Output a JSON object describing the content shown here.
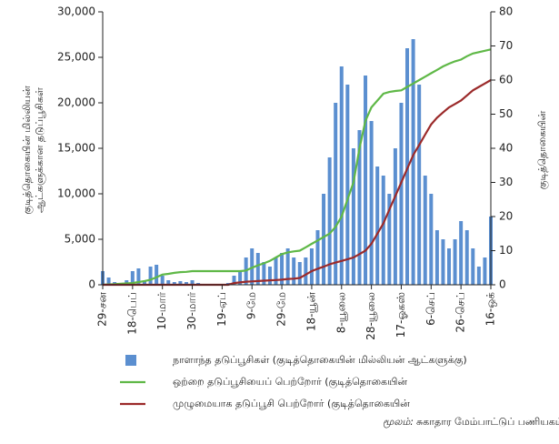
{
  "chart_data": {
    "type": "bar-line",
    "ylabel": [
      "குடித்தொகையின் மில்லியன்",
      "ஆட்களுக்கான தடுப்பூசிகள்"
    ],
    "y2label": "குடித்தொகையின்",
    "categories": [
      "29-சன",
      null,
      null,
      null,
      null,
      "18-பெப்",
      null,
      null,
      null,
      null,
      "10-மார்",
      null,
      null,
      null,
      null,
      "30-மார்",
      null,
      null,
      null,
      null,
      "19-ஏப்",
      null,
      null,
      null,
      null,
      "9-மே",
      null,
      null,
      null,
      null,
      "29-மே",
      null,
      null,
      null,
      null,
      "18-யூன்",
      null,
      null,
      null,
      null,
      "8-யூலை",
      null,
      null,
      null,
      null,
      "28-யூலை",
      null,
      null,
      null,
      null,
      "17-ஓகஸ்",
      null,
      null,
      null,
      null,
      "6-செப்",
      null,
      null,
      null,
      null,
      "26-செப்",
      null,
      null,
      null,
      null,
      "16-ஒக்"
    ],
    "series": [
      {
        "name": "நாளாந்த தடுப்பூசிகள் (குடித்தொகையின் மில்லியன் ஆட்களுக்கு)",
        "color": "#5b8fd0",
        "kind": "bar",
        "values": [
          1500,
          800,
          300,
          200,
          500,
          1500,
          1800,
          500,
          2000,
          2200,
          1000,
          500,
          300,
          400,
          300,
          500,
          200,
          100,
          0,
          0,
          0,
          200,
          1000,
          1500,
          3000,
          4000,
          3500,
          2500,
          2000,
          3000,
          3500,
          4000,
          3000,
          2500,
          3000,
          4000,
          6000,
          10000,
          14000,
          20000,
          24000,
          22000,
          15000,
          17000,
          23000,
          18000,
          13000,
          12000,
          10000,
          15000,
          20000,
          26000,
          27000,
          22000,
          12000,
          10000,
          6000,
          5000,
          4000,
          5000,
          7000,
          6000,
          4000,
          2000,
          3000,
          7500
        ]
      },
      {
        "name": "ஒற்றை தடுப்பூசியைப் பெற்றோர் (குடித்தொகையின்",
        "color": "#5fb847",
        "kind": "line",
        "axis": "y2",
        "values": [
          0,
          0.1,
          0.2,
          0.3,
          0.4,
          0.5,
          0.8,
          1.1,
          1.5,
          2.2,
          3,
          3.2,
          3.5,
          3.7,
          3.8,
          4,
          4,
          4,
          4,
          4,
          4,
          4,
          4,
          4,
          4.2,
          5,
          5.7,
          6.3,
          7,
          8,
          9,
          9.5,
          9.8,
          10,
          11,
          12,
          13,
          14,
          15,
          17,
          20,
          25,
          30,
          40,
          48,
          52,
          54,
          56,
          56.5,
          56.8,
          57,
          58,
          59,
          60,
          61,
          62,
          63,
          64,
          64.8,
          65.5,
          66,
          67,
          67.8,
          68.2,
          68.6,
          69
        ]
      },
      {
        "name": "முழுமையாக தடுப்பூசி பெற்றோர் (குடித்தொகையின்",
        "color": "#9b2a2a",
        "kind": "line",
        "axis": "y2",
        "values": [
          0,
          0,
          0,
          0,
          0,
          0,
          0,
          0,
          0,
          0,
          0,
          0,
          0,
          0,
          0,
          0,
          0,
          0,
          0,
          0,
          0,
          0,
          0.5,
          0.7,
          0.9,
          1,
          1.1,
          1.2,
          1.3,
          1.4,
          1.5,
          1.7,
          1.8,
          2,
          3,
          4,
          4.7,
          5.3,
          6,
          6.5,
          7,
          7.5,
          8,
          9,
          10,
          12,
          15,
          18,
          22,
          26,
          30,
          34,
          38,
          41,
          44,
          47,
          49,
          50.5,
          52,
          53,
          54,
          55.5,
          57,
          58,
          59,
          60
        ]
      }
    ],
    "ylim": [
      0,
      30000
    ],
    "yticks": [
      {
        "value": 0,
        "label": "0"
      },
      {
        "value": 5000,
        "label": "5,000"
      },
      {
        "value": 10000,
        "label": "10,000"
      },
      {
        "value": 15000,
        "label": "15,000"
      },
      {
        "value": 20000,
        "label": "20,000"
      },
      {
        "value": 25000,
        "label": "25,000"
      },
      {
        "value": 30000,
        "label": "30,000"
      }
    ],
    "y2lim": [
      0,
      80
    ],
    "y2ticks": [
      0,
      10,
      20,
      30,
      40,
      50,
      60,
      70,
      80
    ],
    "source": {
      "label": "மூலம்:",
      "text": "சுகாதார மேம்பாட்டுப் பணியகம்"
    }
  }
}
